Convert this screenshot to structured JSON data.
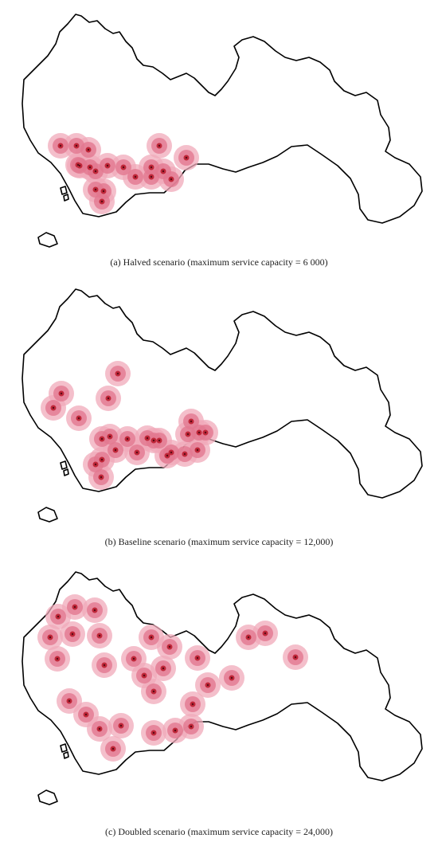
{
  "panels": [
    {
      "caption": "(a) Halved scenario (maximum service capacity = 6 000)"
    },
    {
      "caption": "(b) Baseline scenario (maximum service capacity = 12,000)"
    },
    {
      "caption": "(c) Doubled scenario (maximum service capacity = 24,000)"
    }
  ]
}
